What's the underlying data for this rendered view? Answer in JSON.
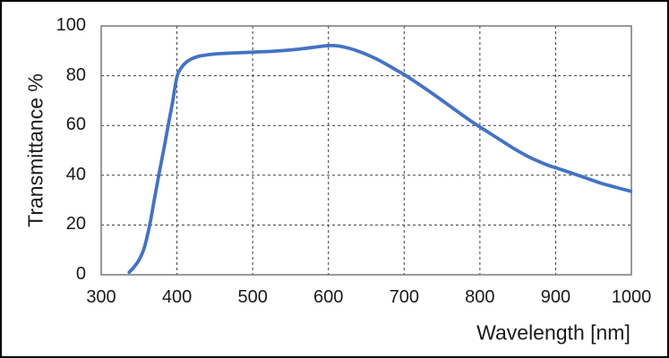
{
  "colors": {
    "curve": "#4472C4",
    "gridline": "#3c3c3c",
    "plot_frame": "#6e6e6e",
    "text": "#1a1a1a",
    "background": "#ffffff",
    "outer_border": "#000000"
  },
  "chart_data": {
    "type": "line",
    "title": "",
    "xlabel": "Wavelength [nm]",
    "ylabel": "Transmittance %",
    "xlim": [
      300,
      1000
    ],
    "ylim": [
      0,
      100
    ],
    "x_ticks": [
      300,
      400,
      500,
      600,
      700,
      800,
      900,
      1000
    ],
    "y_ticks": [
      0,
      20,
      40,
      60,
      80,
      100
    ],
    "grid": "dashed",
    "legend": "none",
    "series": [
      {
        "name": "transmittance",
        "color": "#4472C4",
        "points": [
          [
            337,
            1
          ],
          [
            343,
            3
          ],
          [
            350,
            6
          ],
          [
            357,
            11
          ],
          [
            364,
            20
          ],
          [
            370,
            30
          ],
          [
            376,
            40
          ],
          [
            383,
            51
          ],
          [
            389,
            61
          ],
          [
            394,
            69
          ],
          [
            400,
            79.5
          ],
          [
            406,
            83.3
          ],
          [
            413,
            85.6
          ],
          [
            421,
            87
          ],
          [
            430,
            87.9
          ],
          [
            440,
            88.4
          ],
          [
            452,
            88.8
          ],
          [
            465,
            89
          ],
          [
            480,
            89.2
          ],
          [
            495,
            89.4
          ],
          [
            510,
            89.6
          ],
          [
            525,
            89.8
          ],
          [
            540,
            90.1
          ],
          [
            555,
            90.5
          ],
          [
            570,
            91
          ],
          [
            585,
            91.6
          ],
          [
            600,
            92.1
          ],
          [
            612,
            92
          ],
          [
            625,
            91.2
          ],
          [
            638,
            90
          ],
          [
            650,
            88.6
          ],
          [
            663,
            86.8
          ],
          [
            677,
            84.5
          ],
          [
            690,
            82.2
          ],
          [
            700,
            80.5
          ],
          [
            715,
            77.5
          ],
          [
            730,
            74.4
          ],
          [
            745,
            71.2
          ],
          [
            760,
            67.9
          ],
          [
            775,
            64.6
          ],
          [
            790,
            61.4
          ],
          [
            800,
            59.4
          ],
          [
            815,
            56.5
          ],
          [
            830,
            53.6
          ],
          [
            845,
            50.7
          ],
          [
            860,
            48.1
          ],
          [
            875,
            45.9
          ],
          [
            890,
            44
          ],
          [
            900,
            43
          ],
          [
            920,
            41
          ],
          [
            940,
            38.9
          ],
          [
            960,
            36.8
          ],
          [
            980,
            35.1
          ],
          [
            1000,
            33.5
          ]
        ]
      }
    ]
  }
}
